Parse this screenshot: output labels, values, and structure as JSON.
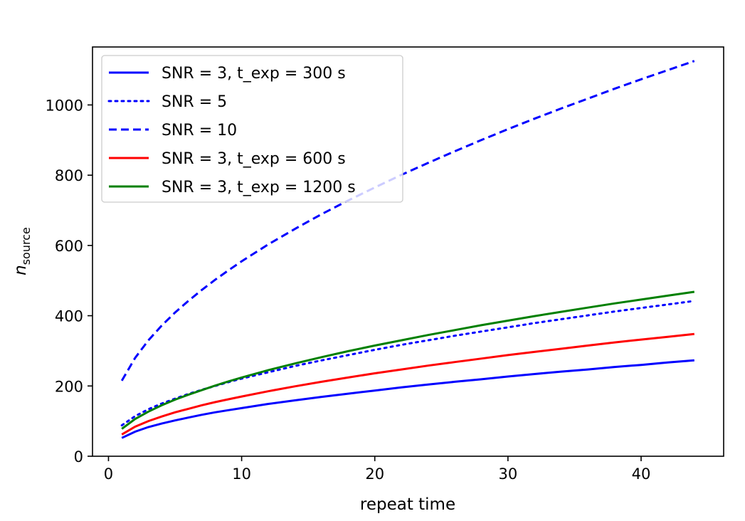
{
  "chart_data": {
    "type": "line",
    "title": "",
    "xlabel": "repeat time",
    "ylabel_main": "n",
    "ylabel_sub": "source",
    "xlim": [
      -1.2,
      46.2
    ],
    "ylim": [
      0,
      1165
    ],
    "xticks": [
      0,
      10,
      20,
      30,
      40
    ],
    "yticks": [
      0,
      200,
      400,
      600,
      800,
      1000
    ],
    "grid": false,
    "legend_position": "upper-left",
    "x": [
      1,
      2,
      3,
      4,
      5,
      6,
      7,
      8,
      9,
      10,
      12,
      14,
      16,
      18,
      20,
      22,
      24,
      26,
      28,
      30,
      32,
      34,
      36,
      38,
      40,
      42,
      44
    ],
    "series": [
      {
        "name": "SNR = 3, t_exp = 300 s",
        "color": "#0000ff",
        "dash": "solid",
        "values": [
          52,
          70,
          83,
          93,
          102,
          110,
          118,
          125,
          131,
          137,
          149,
          159,
          169,
          178,
          187,
          196,
          204,
          212,
          219,
          227,
          234,
          241,
          247,
          254,
          260,
          267,
          273
        ]
      },
      {
        "name": "SNR = 5",
        "color": "#0000ff",
        "dash": "dotted",
        "values": [
          88,
          114,
          134,
          150,
          164,
          177,
          189,
          200,
          211,
          221,
          239,
          257,
          273,
          288,
          303,
          317,
          330,
          343,
          355,
          367,
          379,
          390,
          401,
          412,
          422,
          432,
          442
        ]
      },
      {
        "name": "SNR = 10",
        "color": "#0000ff",
        "dash": "dashed",
        "values": [
          215,
          280,
          330,
          372,
          409,
          442,
          473,
          502,
          529,
          555,
          603,
          647,
          689,
          728,
          765,
          801,
          835,
          868,
          900,
          931,
          961,
          990,
          1018,
          1046,
          1073,
          1099,
          1125
        ]
      },
      {
        "name": "SNR = 3, t_exp = 600 s",
        "color": "#ff0000",
        "dash": "solid",
        "values": [
          62,
          84,
          100,
          113,
          125,
          135,
          145,
          154,
          162,
          170,
          185,
          199,
          212,
          224,
          236,
          247,
          258,
          268,
          278,
          288,
          297,
          306,
          315,
          324,
          332,
          340,
          348
        ]
      },
      {
        "name": "SNR = 3, t_exp = 1200 s",
        "color": "#008000",
        "dash": "solid",
        "values": [
          78,
          106,
          127,
          145,
          161,
          175,
          188,
          201,
          213,
          224,
          245,
          264,
          282,
          299,
          315,
          330,
          345,
          359,
          373,
          386,
          399,
          411,
          423,
          435,
          446,
          457,
          468
        ]
      }
    ]
  }
}
